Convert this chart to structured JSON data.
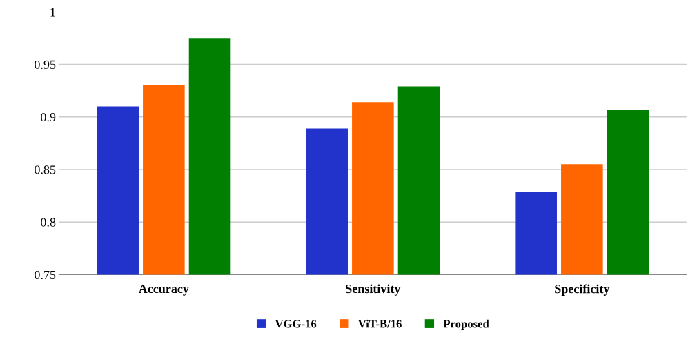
{
  "chart_data": {
    "type": "bar",
    "categories": [
      "Accuracy",
      "Sensitivity",
      "Specificity"
    ],
    "series": [
      {
        "name": "VGG-16",
        "color": "#2233cc",
        "values": [
          0.91,
          0.889,
          0.829
        ]
      },
      {
        "name": "ViT-B/16",
        "color": "#ff6600",
        "values": [
          0.93,
          0.914,
          0.855
        ]
      },
      {
        "name": "Proposed",
        "color": "#007f00",
        "values": [
          0.975,
          0.929,
          0.907
        ]
      }
    ],
    "ylim": [
      0.75,
      1
    ],
    "yticks": [
      0.75,
      0.8,
      0.85,
      0.9,
      0.95,
      1
    ],
    "grid": "y",
    "legend": "bottom"
  }
}
